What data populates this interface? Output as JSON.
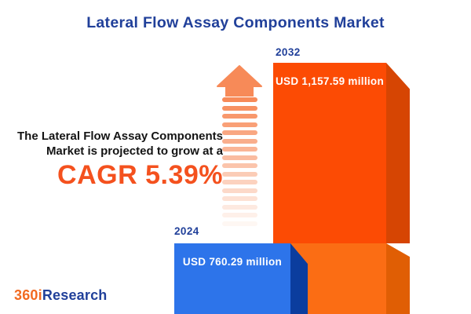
{
  "title": "Lateral Flow Assay Components Market",
  "annotation": {
    "line1": "The Lateral Flow Assay Components",
    "line2": "Market is projected to grow at a",
    "cagr": "CAGR 5.39%"
  },
  "bars": {
    "y2024": {
      "year": "2024",
      "value_label": "USD 760.29 million"
    },
    "y2032": {
      "year": "2032",
      "value_label": "USD 1,157.59 million"
    }
  },
  "logo": {
    "part1": "360i",
    "part2": "Research"
  },
  "colors": {
    "title_blue": "#21409A",
    "cagr_orange": "#F4511E",
    "bar2032_face": "#FC4B04",
    "bar2032_face_lower": "#FB6D14",
    "bar2032_side": "#D64503",
    "bar2032_side_lower": "#E05E04",
    "bar2024_face": "#2D74EA",
    "bar2024_side": "#0B3D9E",
    "arrow_orange": "#F78A58",
    "logo_orange": "#F26A21"
  },
  "arrow": {
    "stripe_count": 16
  },
  "chart_data": {
    "type": "bar",
    "title": "Lateral Flow Assay Components Market",
    "categories": [
      "2024",
      "2032"
    ],
    "values": [
      760.29,
      1157.59
    ],
    "unit": "USD million",
    "value_labels": [
      "USD 760.29 million",
      "USD 1,157.59 million"
    ],
    "cagr_percent": 5.39,
    "annotation": "The Lateral Flow Assay Components Market is projected to grow at a CAGR 5.39%",
    "legend": "none",
    "grid": false,
    "orientation": "vertical",
    "series_colors": [
      "#2D74EA",
      "#FC4B04"
    ]
  }
}
